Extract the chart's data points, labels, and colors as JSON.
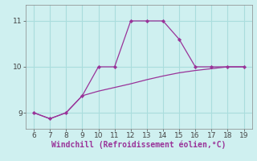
{
  "xlabel": "Windchill (Refroidissement éolien,°C)",
  "bg_color": "#cff0f0",
  "line_color": "#993399",
  "marker_color": "#993399",
  "xlim": [
    5.5,
    19.5
  ],
  "ylim": [
    8.65,
    11.35
  ],
  "xticks": [
    6,
    7,
    8,
    9,
    10,
    11,
    12,
    13,
    14,
    15,
    16,
    17,
    18,
    19
  ],
  "yticks": [
    9,
    10,
    11
  ],
  "line1_x": [
    6,
    7,
    8,
    9,
    10,
    11,
    12,
    13,
    14,
    15,
    16,
    17,
    18,
    19
  ],
  "line1_y": [
    9.0,
    8.87,
    9.0,
    9.37,
    10.0,
    10.0,
    11.0,
    11.0,
    11.0,
    10.6,
    10.0,
    10.0,
    10.0,
    10.0
  ],
  "line2_x": [
    6,
    7,
    8,
    9,
    10,
    11,
    12,
    13,
    14,
    15,
    16,
    17,
    18,
    19
  ],
  "line2_y": [
    9.0,
    8.87,
    9.0,
    9.37,
    9.47,
    9.55,
    9.63,
    9.72,
    9.8,
    9.87,
    9.92,
    9.96,
    10.0,
    10.0
  ],
  "grid_color": "#aadddd",
  "tick_fontsize": 6.5,
  "xlabel_fontsize": 7.0
}
